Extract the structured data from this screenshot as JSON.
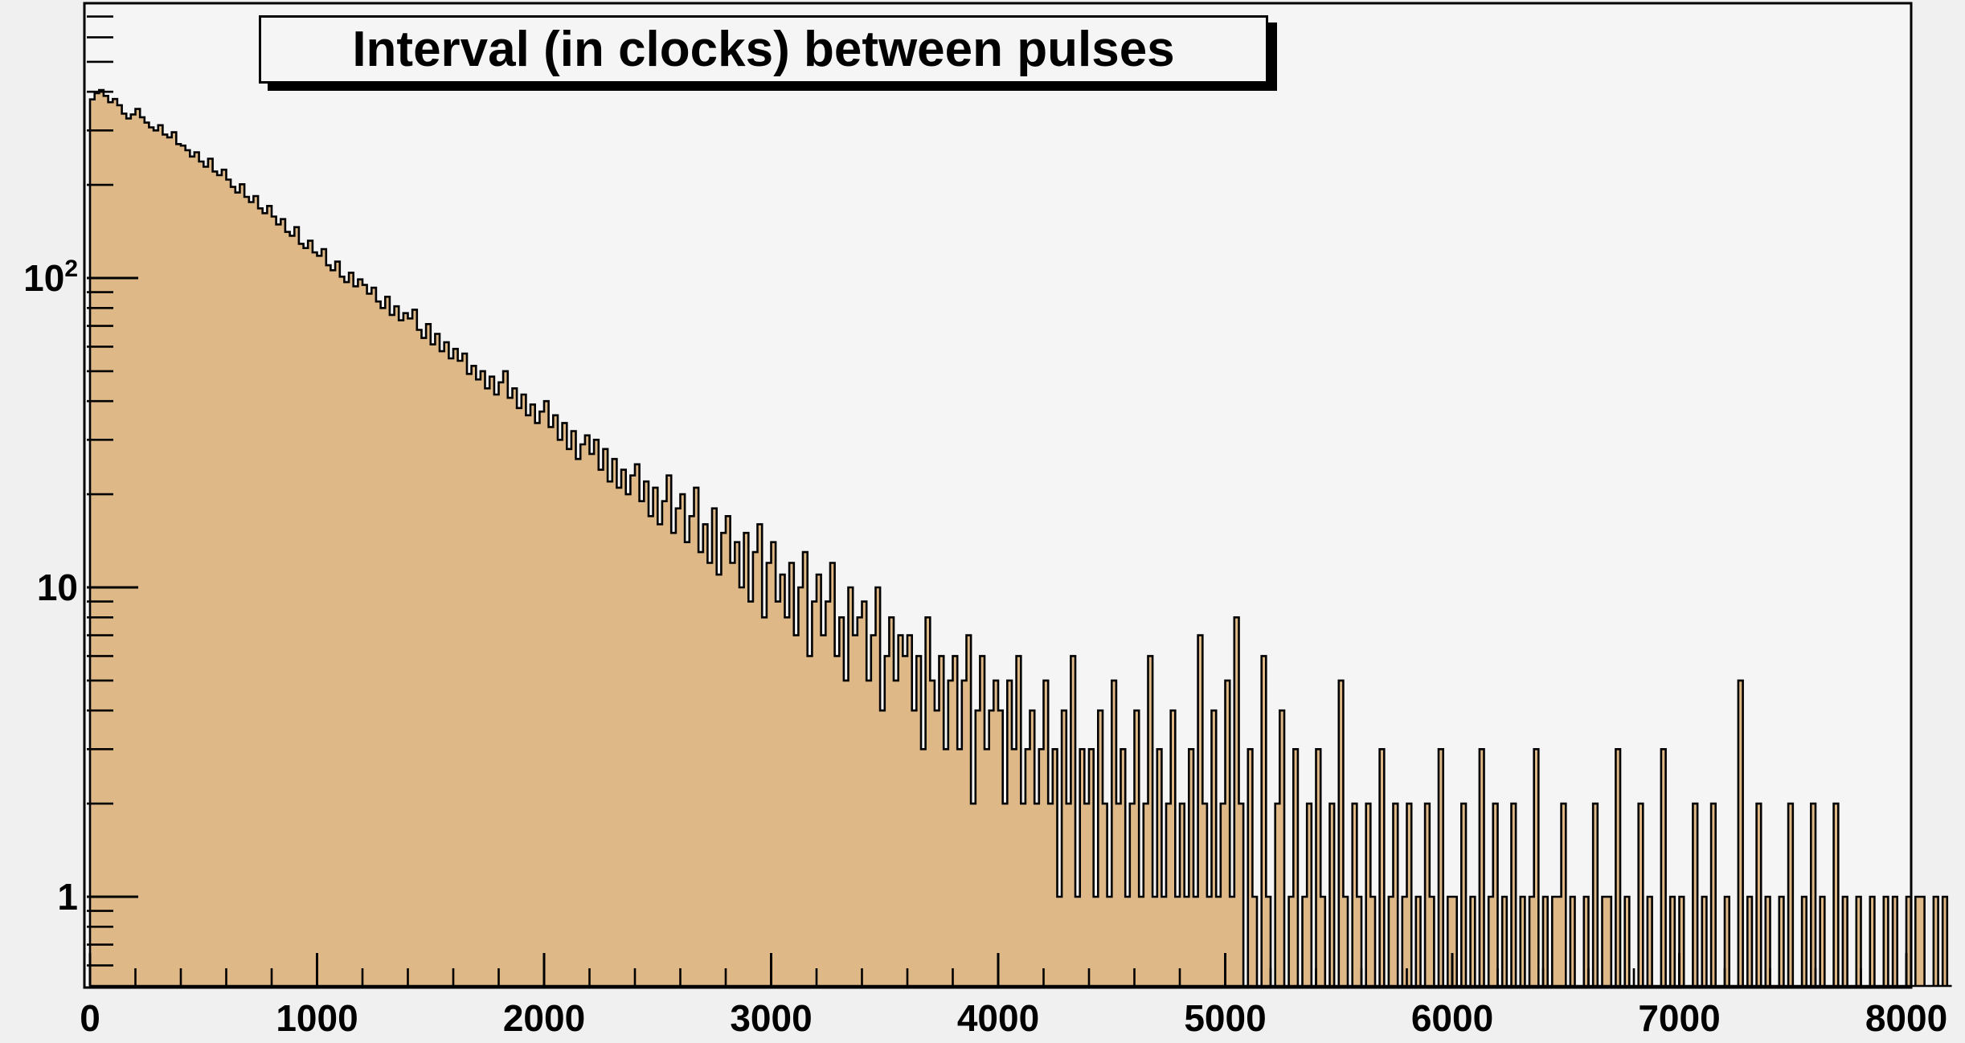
{
  "chart_data": {
    "type": "bar",
    "title": "Interval (in clocks) between pulses",
    "xlabel": "",
    "ylabel": "",
    "x_min": 0,
    "x_max": 8000,
    "bin_width": 20,
    "y_scale": "log",
    "y_min": 0.5,
    "y_max": 770,
    "grid": false,
    "legend": false,
    "fill_color": "#DEB887",
    "line_color": "#000000",
    "frame_fill": "#f5f5f5",
    "canvas_fill": "#f0f0f0",
    "x_ticks_major": [
      0,
      1000,
      2000,
      3000,
      4000,
      5000,
      6000,
      7000,
      8000
    ],
    "x_tick_labels": [
      "0",
      "1000",
      "2000",
      "3000",
      "4000",
      "5000",
      "6000",
      "7000",
      "8000"
    ],
    "x_minor_step": 200,
    "y_ticks_major": [
      {
        "value": 1,
        "text": "1",
        "sup": ""
      },
      {
        "value": 10,
        "text": "10",
        "sup": ""
      },
      {
        "value": 100,
        "text": "10",
        "sup": "2"
      }
    ],
    "y_ticks_minor": [
      0.6,
      0.7,
      0.8,
      0.9,
      2,
      3,
      4,
      5,
      6,
      7,
      8,
      9,
      20,
      30,
      40,
      50,
      60,
      70,
      80,
      90,
      200,
      300,
      400,
      500,
      600,
      700
    ],
    "bins": [
      378,
      396,
      405,
      388,
      370,
      379,
      362,
      340,
      328,
      338,
      352,
      331,
      318,
      307,
      300,
      312,
      291,
      285,
      296,
      271,
      268,
      259,
      247,
      255,
      238,
      229,
      243,
      221,
      215,
      224,
      208,
      197,
      189,
      201,
      183,
      176,
      184,
      168,
      162,
      171,
      158,
      149,
      155,
      141,
      137,
      146,
      129,
      125,
      132,
      121,
      118,
      124,
      110,
      106,
      113,
      101,
      97,
      104,
      94,
      99,
      95,
      89,
      93,
      84,
      80,
      87,
      76,
      81,
      73,
      77,
      74,
      79,
      68,
      64,
      71,
      61,
      66,
      58,
      62,
      55,
      59,
      54,
      57,
      49,
      52,
      47,
      50,
      44,
      48,
      42,
      46,
      50,
      41,
      44,
      38,
      42,
      36,
      39,
      34,
      37,
      40,
      33,
      36,
      30,
      34,
      28,
      32,
      26,
      29,
      31,
      27,
      30,
      24,
      28,
      22,
      26,
      21,
      24,
      20,
      23,
      25,
      19,
      22,
      17,
      21,
      16,
      19,
      23,
      15,
      18,
      20,
      14,
      17,
      21,
      13,
      16,
      12,
      18,
      11,
      15,
      17,
      12,
      14,
      10,
      15,
      9,
      13,
      16,
      8,
      12,
      14,
      9,
      11,
      8,
      12,
      7,
      10,
      13,
      6,
      9,
      11,
      7,
      9,
      12,
      6,
      8,
      5,
      10,
      7,
      8,
      9,
      5,
      7,
      10,
      4,
      6,
      8,
      5,
      7,
      6,
      7,
      4,
      6,
      3,
      8,
      5,
      4,
      6,
      3,
      5,
      6,
      3,
      5,
      7,
      2,
      4,
      6,
      3,
      4,
      5,
      4,
      2,
      5,
      3,
      6,
      2,
      3,
      4,
      2,
      3,
      5,
      2,
      3,
      1,
      4,
      2,
      6,
      1,
      3,
      2,
      3,
      1,
      4,
      2,
      1,
      5,
      2,
      3,
      1,
      2,
      4,
      1,
      2,
      6,
      1,
      3,
      1,
      2,
      4,
      1,
      2,
      1,
      3,
      1,
      7,
      2,
      1,
      4,
      1,
      2,
      5,
      1,
      8,
      2,
      0,
      3,
      1,
      0,
      6,
      1,
      0,
      2,
      4,
      0,
      1,
      3,
      0,
      1,
      2,
      0,
      3,
      1,
      0,
      2,
      0,
      5,
      1,
      0,
      2,
      1,
      0,
      2,
      1,
      0,
      3,
      0,
      1,
      2,
      0,
      1,
      2,
      0,
      1,
      0,
      2,
      1,
      0,
      3,
      0,
      1,
      1,
      0,
      2,
      0,
      1,
      0,
      3,
      0,
      1,
      2,
      0,
      1,
      0,
      2,
      0,
      1,
      0,
      1,
      3,
      0,
      1,
      0,
      1,
      1,
      2,
      0,
      1,
      0,
      0,
      1,
      0,
      2,
      0,
      1,
      1,
      0,
      3,
      0,
      1,
      0,
      0,
      2,
      0,
      1,
      0,
      0,
      3,
      0,
      1,
      0,
      1,
      0,
      0,
      2,
      0,
      1,
      0,
      2,
      0,
      0,
      1,
      0,
      0,
      5,
      0,
      1,
      0,
      2,
      0,
      1,
      0,
      0,
      1,
      0,
      2,
      0,
      0,
      1,
      0,
      2,
      0,
      1,
      0,
      0,
      2,
      0,
      1,
      0,
      0,
      1,
      0,
      0,
      1,
      0,
      0,
      1,
      0,
      1,
      0,
      0,
      1,
      0,
      1,
      1,
      0,
      0,
      1,
      0,
      1,
      0
    ]
  }
}
